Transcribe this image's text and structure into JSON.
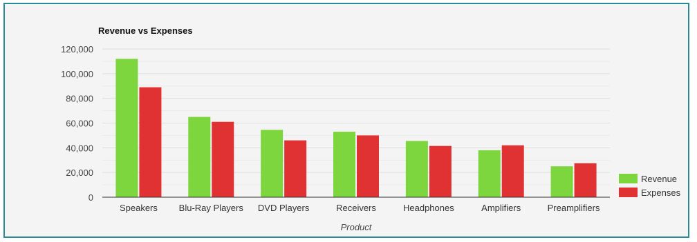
{
  "chart_data": {
    "type": "bar",
    "title": "Revenue vs Expenses",
    "xlabel": "Product",
    "ylabel": "",
    "ylim": [
      0,
      120000
    ],
    "yticks": [
      0,
      20000,
      40000,
      60000,
      80000,
      100000,
      120000
    ],
    "ytick_labels": [
      "0",
      "20,000",
      "40,000",
      "60,000",
      "80,000",
      "100,000",
      "120,000"
    ],
    "categories": [
      "Speakers",
      "Blu-Ray Players",
      "DVD Players",
      "Receivers",
      "Headphones",
      "Amplifiers",
      "Preamplifiers"
    ],
    "series": [
      {
        "name": "Revenue",
        "color": "#7ed63f",
        "values": [
          112000,
          65000,
          54500,
          53000,
          45500,
          38000,
          25000
        ]
      },
      {
        "name": "Expenses",
        "color": "#e03232",
        "values": [
          89000,
          61000,
          46000,
          50000,
          41500,
          42000,
          27500
        ]
      }
    ],
    "legend": "right",
    "grid": true
  }
}
